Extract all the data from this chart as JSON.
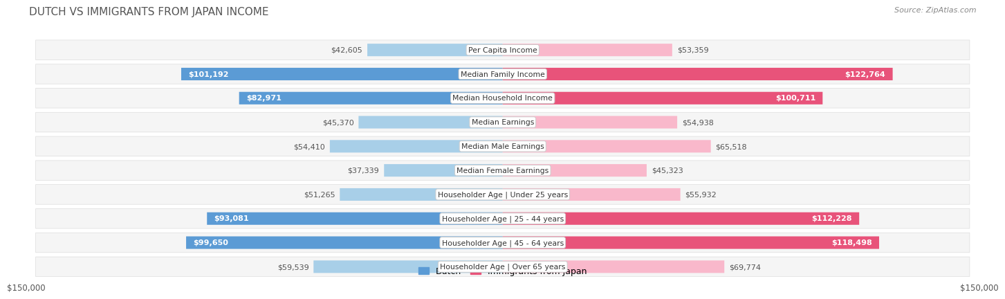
{
  "title": "DUTCH VS IMMIGRANTS FROM JAPAN INCOME",
  "source": "Source: ZipAtlas.com",
  "categories": [
    "Per Capita Income",
    "Median Family Income",
    "Median Household Income",
    "Median Earnings",
    "Median Male Earnings",
    "Median Female Earnings",
    "Householder Age | Under 25 years",
    "Householder Age | 25 - 44 years",
    "Householder Age | 45 - 64 years",
    "Householder Age | Over 65 years"
  ],
  "dutch_values": [
    42605,
    101192,
    82971,
    45370,
    54410,
    37339,
    51265,
    93081,
    99650,
    59539
  ],
  "japan_values": [
    53359,
    122764,
    100711,
    54938,
    65518,
    45323,
    55932,
    112228,
    118498,
    69774
  ],
  "dutch_labels": [
    "$42,605",
    "$101,192",
    "$82,971",
    "$45,370",
    "$54,410",
    "$37,339",
    "$51,265",
    "$93,081",
    "$99,650",
    "$59,539"
  ],
  "japan_labels": [
    "$53,359",
    "$122,764",
    "$100,711",
    "$54,938",
    "$65,518",
    "$45,323",
    "$55,932",
    "$112,228",
    "$118,498",
    "$69,774"
  ],
  "dutch_color_light": "#a8cfe8",
  "dutch_color_dark": "#5b9bd5",
  "japan_color_light": "#f9b8cb",
  "japan_color_dark": "#e8537a",
  "max_value": 150000,
  "legend_dutch": "Dutch",
  "legend_japan": "Immigrants from Japan",
  "row_bg_light": "#f5f5f5",
  "row_border": "#dddddd",
  "label_inside_threshold": 70000,
  "title_fontsize": 11,
  "label_fontsize": 8.0,
  "cat_fontsize": 7.8,
  "source_fontsize": 8,
  "axis_label": "$150,000",
  "title_color": "#555555",
  "source_color": "#888888",
  "inside_label_color": "#ffffff",
  "outside_label_color": "#555555",
  "cat_label_color": "#333333"
}
